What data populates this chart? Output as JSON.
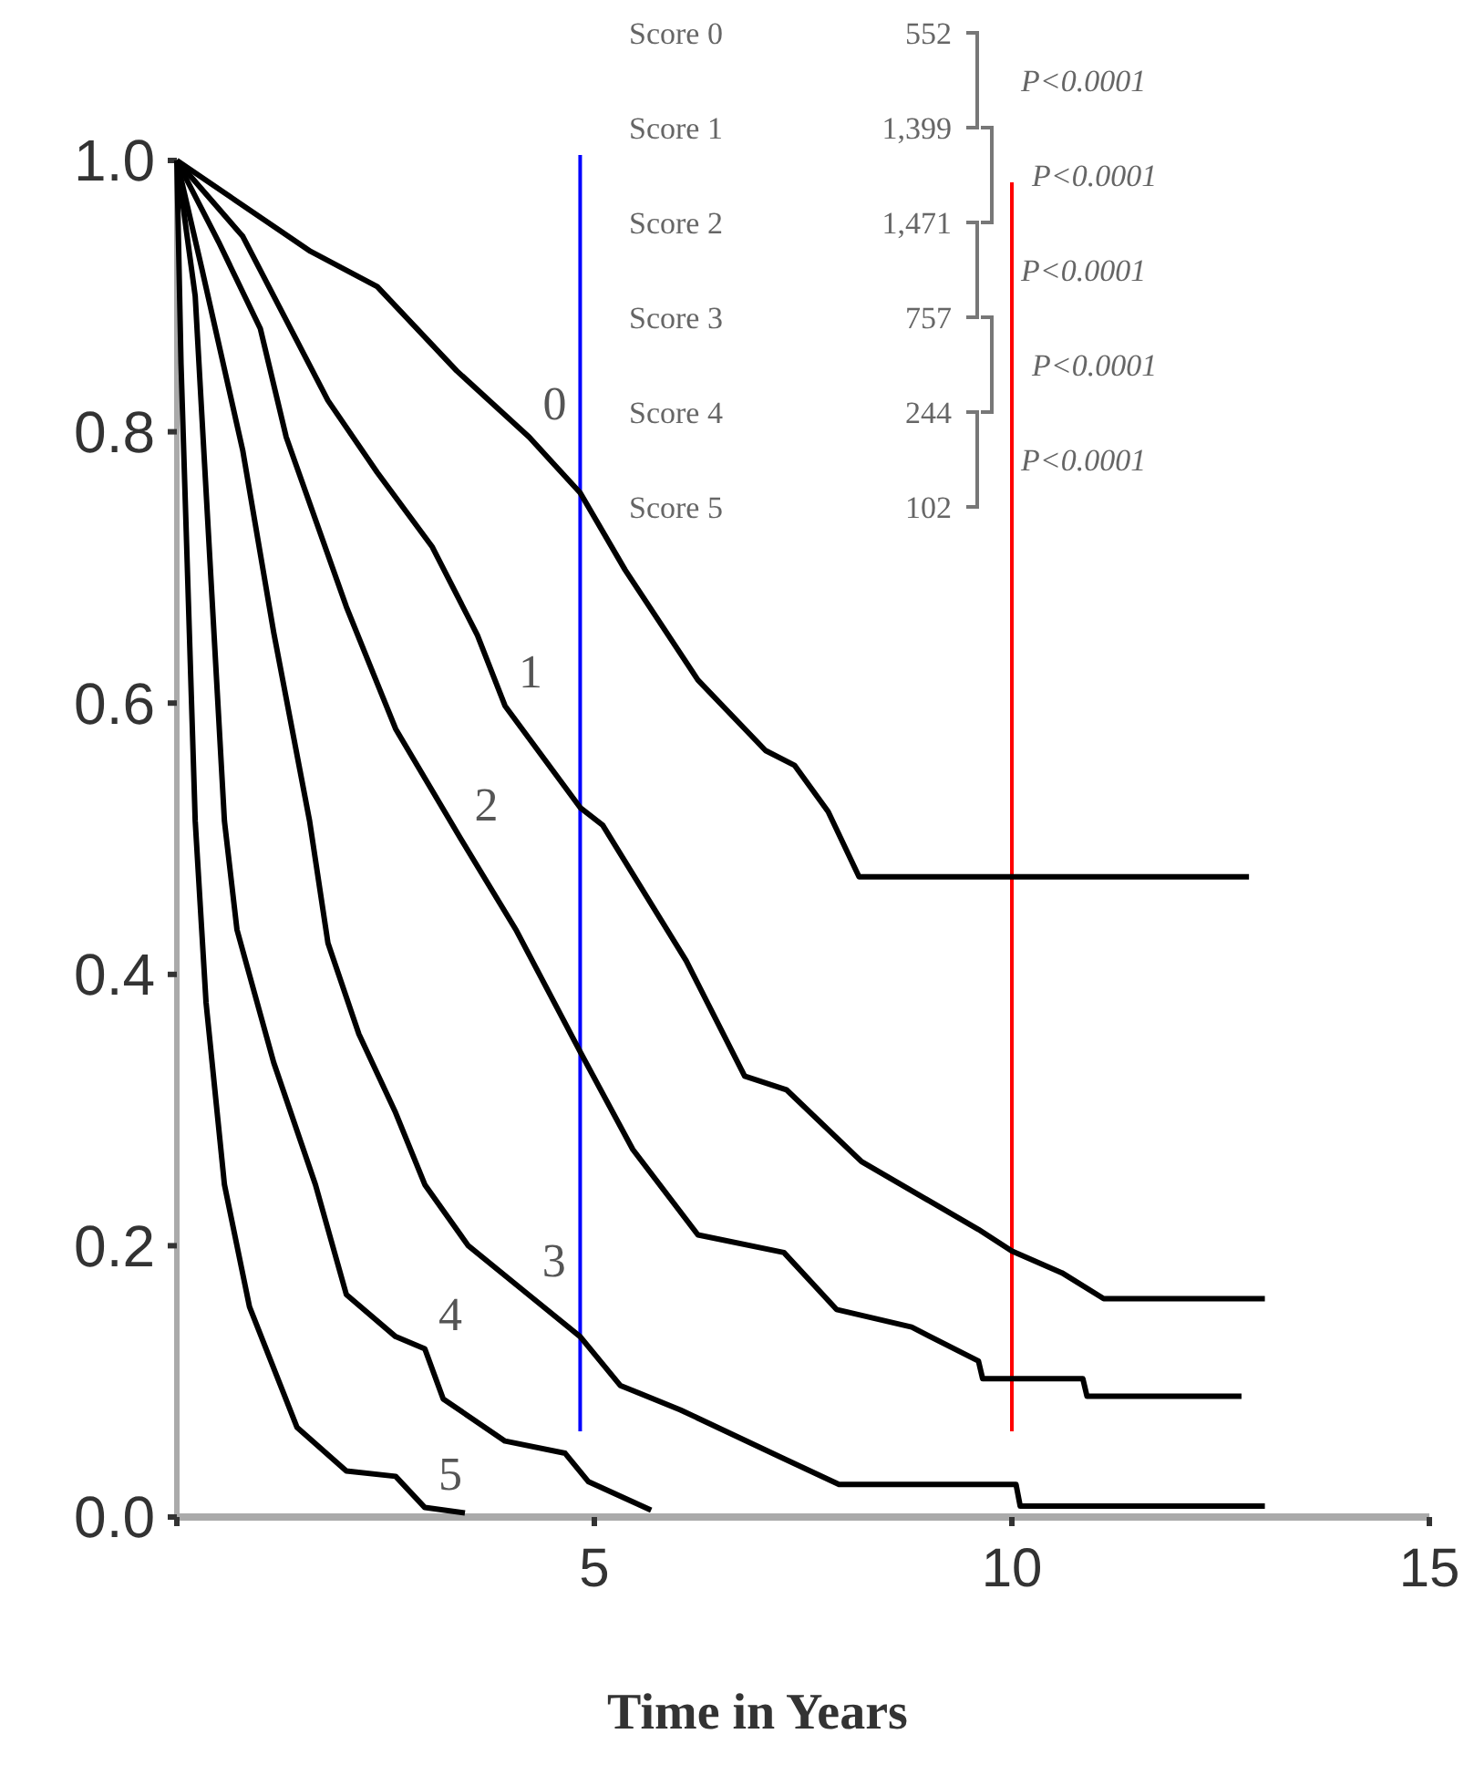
{
  "chart_data": {
    "type": "line",
    "xlabel": "Time in Years",
    "xlim": [
      0,
      15
    ],
    "ylim": [
      0,
      1
    ],
    "xticks": [
      {
        "value": 0,
        "label": null
      },
      5,
      10,
      15
    ],
    "yticks": [
      {
        "value": 0,
        "label": "0.0"
      },
      0.2,
      0.4,
      0.6,
      0.8,
      {
        "value": 1,
        "label": "1.0"
      }
    ],
    "grid": false,
    "line_style": "solid",
    "series": [
      {
        "name": "0",
        "color": "#000000",
        "x": [
          0,
          1.6,
          2.4,
          3.35,
          4.22,
          4.83,
          5.37,
          6.24,
          7.05,
          7.4,
          7.8,
          8.17,
          12.84
        ],
        "values": [
          1,
          0.933,
          0.907,
          0.845,
          0.796,
          0.755,
          0.698,
          0.617,
          0.565,
          0.554,
          0.52,
          0.472,
          0.472
        ]
      },
      {
        "name": "1",
        "color": "#000000",
        "x": [
          0,
          0.79,
          1.81,
          2.4,
          3.06,
          3.6,
          3.93,
          4.83,
          5.1,
          6.1,
          6.8,
          7.3,
          8.2,
          9.6,
          10,
          10.6,
          11.1,
          13.03
        ],
        "values": [
          1,
          0.944,
          0.823,
          0.77,
          0.715,
          0.65,
          0.598,
          0.523,
          0.51,
          0.41,
          0.325,
          0.315,
          0.262,
          0.212,
          0.196,
          0.18,
          0.161,
          0.161
        ]
      },
      {
        "name": "2",
        "color": "#000000",
        "x": [
          0,
          0.5,
          1,
          1.31,
          2.03,
          2.62,
          3.4,
          4.06,
          4.83,
          5.46,
          6.24,
          7.27,
          7.9,
          8.8,
          9.6,
          9.65,
          10.85,
          10.9,
          12.75
        ],
        "values": [
          1,
          0.94,
          0.876,
          0.796,
          0.671,
          0.581,
          0.5,
          0.433,
          0.343,
          0.271,
          0.208,
          0.195,
          0.153,
          0.14,
          0.115,
          0.102,
          0.102,
          0.089,
          0.089
        ]
      },
      {
        "name": "3",
        "color": "#000000",
        "x": [
          0,
          0.3,
          0.79,
          1.16,
          1.59,
          1.81,
          2.18,
          2.62,
          2.97,
          3.49,
          4.21,
          4.83,
          5.31,
          6.03,
          7.27,
          7.93,
          10.05,
          10.1,
          13.03
        ],
        "values": [
          1,
          0.92,
          0.786,
          0.652,
          0.513,
          0.423,
          0.356,
          0.298,
          0.245,
          0.2,
          0.164,
          0.133,
          0.097,
          0.079,
          0.043,
          0.024,
          0.024,
          0.008,
          0.008
        ]
      },
      {
        "name": "4",
        "color": "#000000",
        "x": [
          0,
          0.22,
          0.57,
          0.72,
          1.16,
          1.66,
          2.03,
          2.62,
          2.97,
          3.19,
          3.93,
          4.65,
          4.93,
          5.68
        ],
        "values": [
          1,
          0.9,
          0.513,
          0.433,
          0.335,
          0.245,
          0.164,
          0.133,
          0.124,
          0.087,
          0.056,
          0.047,
          0.026,
          0.005
        ]
      },
      {
        "name": "5",
        "color": "#000000",
        "x": [
          0,
          0.05,
          0.22,
          0.35,
          0.57,
          0.87,
          1.44,
          2.03,
          2.62,
          2.97,
          3.45
        ],
        "values": [
          1,
          0.85,
          0.513,
          0.379,
          0.245,
          0.155,
          0.066,
          0.034,
          0.03,
          0.007,
          0.003
        ]
      }
    ],
    "ref_lines": [
      {
        "axis": "x",
        "value": 4.83,
        "color": "#0000ff"
      },
      {
        "axis": "x",
        "value": 10,
        "color": "#ff0000"
      }
    ],
    "annotations": [
      "Score 0",
      "552",
      "Score 1",
      "1,399",
      "Score 2",
      "1,471",
      "Score 3",
      "757",
      "Score 4",
      "244",
      "Score 5",
      "102",
      "P<0.0001",
      "P<0.0001",
      "P<0.0001",
      "P<0.0001",
      "P<0.0001"
    ]
  }
}
